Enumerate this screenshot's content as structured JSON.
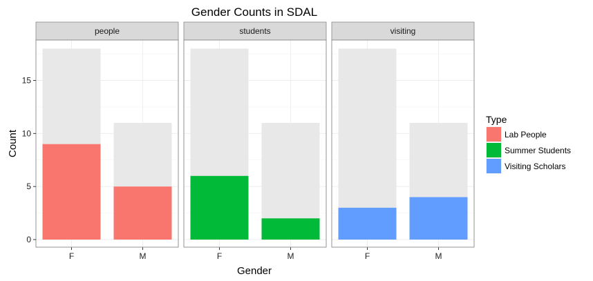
{
  "chart_data": {
    "type": "bar",
    "title": "Gender Counts in SDAL",
    "xlabel": "Gender",
    "ylabel": "Count",
    "categories": [
      "F",
      "M"
    ],
    "ylim": [
      0,
      19
    ],
    "yticks": [
      0,
      5,
      10,
      15
    ],
    "grid": true,
    "facets": [
      {
        "label": "people",
        "type": "Lab People",
        "color": "#F8766D",
        "values": [
          9,
          5
        ],
        "totals": [
          18,
          11
        ]
      },
      {
        "label": "students",
        "type": "Summer Students",
        "color": "#00BA38",
        "values": [
          6,
          2
        ],
        "totals": [
          18,
          11
        ]
      },
      {
        "label": "visiting",
        "type": "Visiting Scholars",
        "color": "#619CFF",
        "values": [
          3,
          4
        ],
        "totals": [
          18,
          11
        ]
      }
    ],
    "background_bar_color": "#e8e8e8",
    "legend": {
      "title": "Type",
      "placement": "right",
      "entries": [
        {
          "label": "Lab People",
          "color": "#F8766D"
        },
        {
          "label": "Summer Students",
          "color": "#00BA38"
        },
        {
          "label": "Visiting Scholars",
          "color": "#619CFF"
        }
      ]
    }
  }
}
